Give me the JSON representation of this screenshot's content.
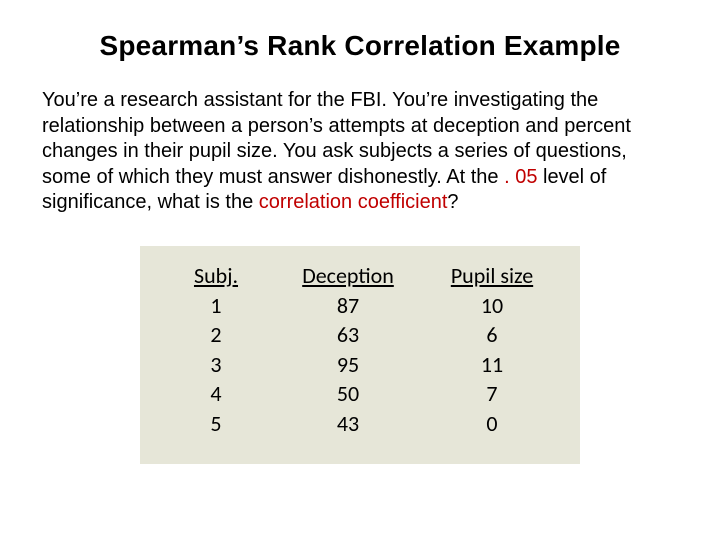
{
  "title": "Spearman’s Rank Correlation Example",
  "paragraph": {
    "pre": "You’re a research assistant for the FBI.  You’re investigating the relationship between a person’s attempts at deception and percent changes in their pupil size.  You ask subjects a series of questions, some of which they must answer dishonestly.  At the ",
    "sig_level": ". 05",
    "mid": " level of significance, what is the ",
    "target": "correlation coefficient",
    "post": "?"
  },
  "table": {
    "background_color": "#e6e6d8",
    "header_fontsize": 22,
    "cell_fontsize": 22,
    "columns": [
      "Subj.",
      "Deception",
      "Pupil size"
    ],
    "rows": [
      [
        "1",
        "87",
        "10"
      ],
      [
        "2",
        "63",
        "6"
      ],
      [
        "3",
        "95",
        "11"
      ],
      [
        "4",
        "50",
        "7"
      ],
      [
        "5",
        "43",
        "0"
      ]
    ]
  },
  "colors": {
    "highlight": "#c00000",
    "text": "#000000",
    "background": "#ffffff"
  }
}
